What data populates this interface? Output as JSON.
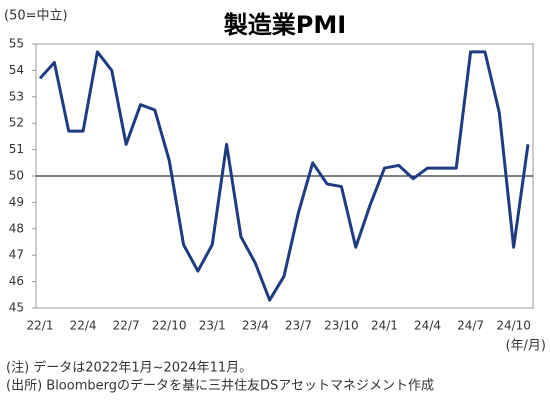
{
  "chart_data": {
    "type": "line",
    "title": "製造業PMI",
    "y_label": "(50=中立)",
    "x_label": "(年/月)",
    "categories": [
      "22/1",
      null,
      null,
      "22/4",
      null,
      null,
      "22/7",
      null,
      null,
      "22/10",
      null,
      null,
      "23/1",
      null,
      null,
      "23/4",
      null,
      null,
      "23/7",
      null,
      null,
      "23/10",
      null,
      null,
      "24/1",
      null,
      null,
      "24/4",
      null,
      null,
      "24/7",
      null,
      null,
      "24/10",
      null
    ],
    "series": [
      {
        "name": "製造業PMI",
        "color": "#1f3c80",
        "values": [
          53.7,
          54.3,
          51.7,
          51.7,
          54.7,
          54.0,
          51.2,
          52.7,
          52.5,
          50.6,
          47.4,
          46.4,
          47.4,
          51.2,
          47.7,
          46.7,
          45.3,
          46.2,
          48.6,
          50.5,
          49.7,
          49.6,
          47.3,
          48.9,
          50.3,
          50.4,
          49.9,
          50.3,
          50.3,
          50.3,
          54.7,
          54.7,
          52.4,
          47.3,
          51.2
        ]
      }
    ],
    "ylim": [
      45,
      55
    ],
    "yticks": [
      45,
      46,
      47,
      48,
      49,
      50,
      51,
      52,
      53,
      54,
      55
    ],
    "reference_line": 50,
    "grid": false,
    "notes": [
      "(注) データは2022年1月~2024年11月。",
      "(出所) Bloombergのデータを基に三井住友DSアセットマネジメント作成"
    ]
  }
}
